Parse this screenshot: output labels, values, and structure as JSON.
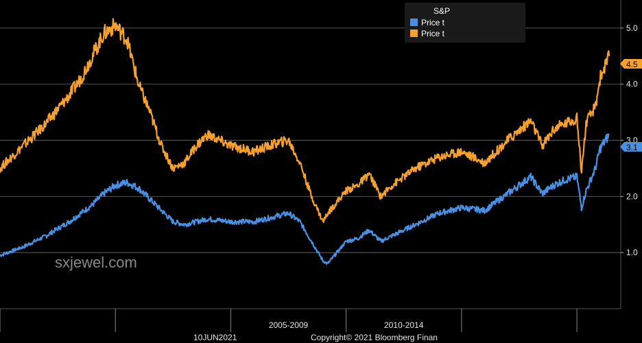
{
  "chart_data": {
    "type": "line",
    "title": "S&P",
    "x_ticks": [
      "2005-2009",
      "2010-2014"
    ],
    "ylim": [
      0.0,
      5.5
    ],
    "y_ticks": [
      "1.0",
      "2.0",
      "3.0",
      "4.0",
      "5.0"
    ],
    "grid": true,
    "legend_position": "top-right",
    "series": [
      {
        "name": "Price t",
        "color": "#4a90e2",
        "last_value": "3.1",
        "x": [
          1995.0,
          1996.0,
          1997.0,
          1998.0,
          1999.0,
          1999.5,
          2000.0,
          2000.5,
          2001.0,
          2001.5,
          2002.0,
          2002.5,
          2003.0,
          2003.5,
          2004.0,
          2005.0,
          2006.0,
          2007.0,
          2007.5,
          2008.0,
          2008.5,
          2009.0,
          2009.2,
          2010.0,
          2010.5,
          2011.0,
          2011.5,
          2012.0,
          2013.0,
          2014.0,
          2015.0,
          2016.0,
          2017.0,
          2018.0,
          2018.5,
          2019.0,
          2019.5,
          2020.0,
          2020.2,
          2020.4,
          2020.8,
          2021.0,
          2021.4
        ],
        "values": [
          0.95,
          1.1,
          1.3,
          1.55,
          1.85,
          2.05,
          2.2,
          2.25,
          2.15,
          1.95,
          1.75,
          1.55,
          1.5,
          1.55,
          1.6,
          1.55,
          1.55,
          1.65,
          1.7,
          1.55,
          1.2,
          0.85,
          0.8,
          1.2,
          1.25,
          1.4,
          1.2,
          1.3,
          1.5,
          1.7,
          1.8,
          1.75,
          2.05,
          2.35,
          2.05,
          2.2,
          2.3,
          2.35,
          1.8,
          2.1,
          2.5,
          2.85,
          3.1
        ]
      },
      {
        "name": "Price t",
        "color": "#f5a031",
        "last_value": "4.5",
        "x": [
          1995.0,
          1996.0,
          1997.0,
          1998.0,
          1998.5,
          1999.0,
          1999.5,
          2000.0,
          2000.5,
          2001.0,
          2001.5,
          2002.0,
          2002.5,
          2003.0,
          2003.5,
          2004.0,
          2005.0,
          2006.0,
          2007.0,
          2007.5,
          2008.0,
          2008.5,
          2009.0,
          2009.2,
          2010.0,
          2010.5,
          2011.0,
          2011.5,
          2012.0,
          2013.0,
          2014.0,
          2015.0,
          2016.0,
          2017.0,
          2018.0,
          2018.5,
          2019.0,
          2019.5,
          2020.0,
          2020.2,
          2020.4,
          2020.8,
          2021.0,
          2021.4
        ],
        "values": [
          2.5,
          2.9,
          3.3,
          3.8,
          4.1,
          4.5,
          4.9,
          5.05,
          4.8,
          4.0,
          3.5,
          2.9,
          2.5,
          2.6,
          2.9,
          3.1,
          2.9,
          2.8,
          2.95,
          3.0,
          2.6,
          2.0,
          1.55,
          1.7,
          2.1,
          2.2,
          2.4,
          2.0,
          2.2,
          2.5,
          2.7,
          2.8,
          2.6,
          3.0,
          3.35,
          2.9,
          3.2,
          3.3,
          3.4,
          2.45,
          3.3,
          3.6,
          4.1,
          4.5
        ]
      }
    ]
  },
  "footer": {
    "date": "10JUN2021",
    "copyright": "Copyright© 2021 Bloomberg Finan"
  },
  "watermark": "sxjewel.com"
}
